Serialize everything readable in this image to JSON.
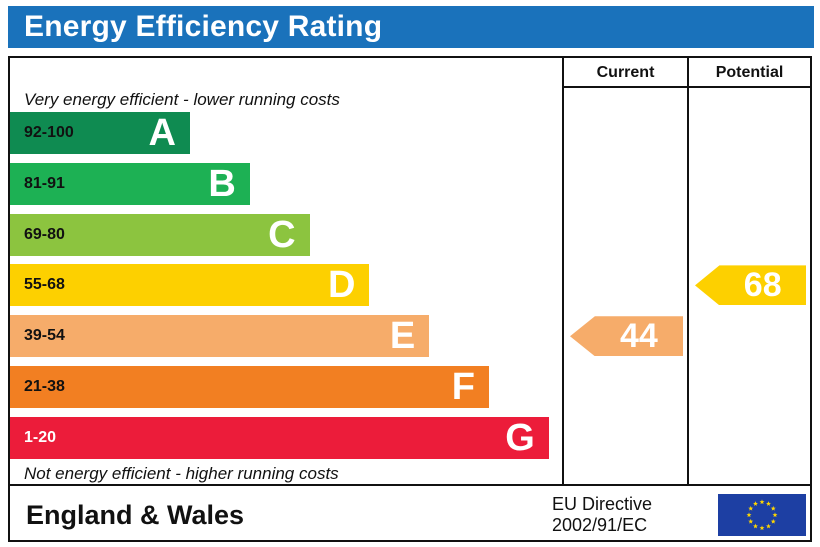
{
  "title": "Energy Efficiency Rating",
  "columns": {
    "current": "Current",
    "potential": "Potential"
  },
  "top_caption": "Very energy efficient - lower running costs",
  "bottom_caption": "Not energy efficient - higher running costs",
  "bands": [
    {
      "letter": "A",
      "range": "92-100",
      "color": "#0f8b51"
    },
    {
      "letter": "B",
      "range": "81-91",
      "color": "#1db154"
    },
    {
      "letter": "C",
      "range": "69-80",
      "color": "#8cc43f"
    },
    {
      "letter": "D",
      "range": "55-68",
      "color": "#fdd000"
    },
    {
      "letter": "E",
      "range": "39-54",
      "color": "#f6ac6a"
    },
    {
      "letter": "F",
      "range": "21-38",
      "color": "#f27f22"
    },
    {
      "letter": "G",
      "range": "1-20",
      "color": "#ec1c3a"
    }
  ],
  "chart_data": {
    "type": "bar",
    "title": "Energy Efficiency Rating",
    "categories": [
      "A",
      "B",
      "C",
      "D",
      "E",
      "F",
      "G"
    ],
    "ranges": [
      "92-100",
      "81-91",
      "69-80",
      "55-68",
      "39-54",
      "21-38",
      "1-20"
    ],
    "current": {
      "value": 44,
      "band": "E",
      "color": "#f6ac6a"
    },
    "potential": {
      "value": 68,
      "band": "D",
      "color": "#fdd000"
    }
  },
  "footer": {
    "region": "England & Wales",
    "directive_line1": "EU Directive",
    "directive_line2": "2002/91/EC"
  },
  "eu_flag": {
    "color": "#1d3fa3",
    "star_color": "#ffd700"
  }
}
